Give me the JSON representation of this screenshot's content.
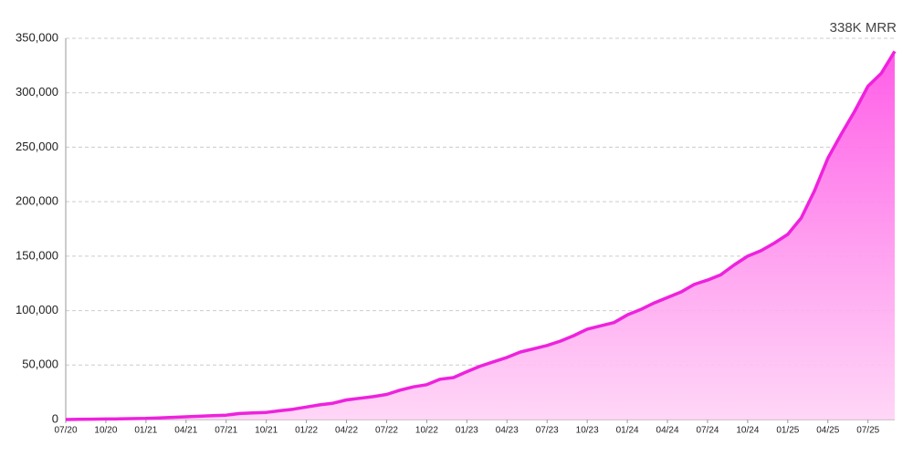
{
  "chart_data": {
    "type": "area",
    "annotation": "338K MRR",
    "categories": [
      "07/20",
      null,
      null,
      "10/20",
      null,
      null,
      "01/21",
      null,
      null,
      "04/21",
      null,
      null,
      "07/21",
      null,
      null,
      "10/21",
      null,
      null,
      "01/22",
      null,
      null,
      "04/22",
      null,
      null,
      "07/22",
      null,
      null,
      "10/22",
      null,
      null,
      "01/23",
      null,
      null,
      "04/23",
      null,
      null,
      "07/23",
      null,
      null,
      "10/23",
      null,
      null,
      "01/24",
      null,
      null,
      "04/24",
      null,
      null,
      "07/24",
      null,
      null,
      "10/24",
      null,
      null,
      "01/25",
      null,
      null,
      "04/25",
      null,
      null,
      "07/25",
      null,
      null
    ],
    "values": [
      0,
      200,
      300,
      500,
      600,
      800,
      1000,
      1500,
      2000,
      2500,
      3000,
      3500,
      4000,
      5500,
      6000,
      6500,
      8000,
      9500,
      11500,
      13500,
      15000,
      18000,
      19500,
      21000,
      23000,
      27000,
      30000,
      32000,
      37000,
      38500,
      44000,
      49000,
      53000,
      57000,
      62000,
      65000,
      68000,
      72000,
      77000,
      83000,
      86000,
      89000,
      96000,
      101000,
      107000,
      112000,
      117000,
      124000,
      128000,
      133000,
      142000,
      150000,
      155000,
      162000,
      170000,
      185000,
      210000,
      240000,
      262000,
      283000,
      306000,
      318000,
      338000
    ],
    "color": "#ee22dd",
    "ylim": [
      0,
      350000
    ],
    "yticks": [
      0,
      {
        "value": 50000,
        "label": "50,000"
      },
      {
        "value": 100000,
        "label": "100,000"
      },
      {
        "value": 150000,
        "label": "150,000"
      },
      {
        "value": 200000,
        "label": "200,000"
      },
      {
        "value": 250000,
        "label": "250,000"
      },
      {
        "value": 300000,
        "label": "300,000"
      },
      {
        "value": 350000,
        "label": "350,000"
      }
    ],
    "grid": true
  }
}
